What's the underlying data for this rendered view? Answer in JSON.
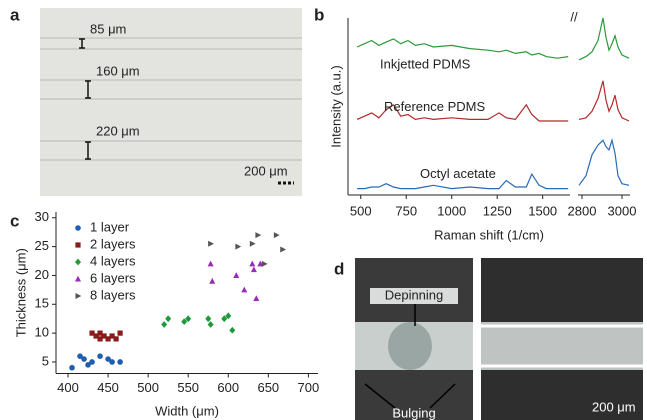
{
  "panels": {
    "a": {
      "label": "a",
      "notes": [
        "85 μm",
        "160 μm",
        "220 μm"
      ],
      "scale": "200 μm"
    },
    "b": {
      "label": "b"
    },
    "c": {
      "label": "c"
    },
    "d": {
      "label": "d",
      "notes": [
        "Depinning",
        "Bulging"
      ],
      "scale": "200 μm"
    }
  },
  "chart_data": [
    {
      "type": "line",
      "xlabel": "Raman shift (1/cm)",
      "ylabel": "Intensity (a.u.)",
      "xlim": [
        430,
        3040
      ],
      "xbreak": [
        1650,
        2780
      ],
      "ylim": [
        0,
        11
      ],
      "xticks": [
        500,
        750,
        1000,
        1250,
        1500,
        2800,
        3000
      ],
      "x": [
        480,
        520,
        560,
        600,
        640,
        680,
        720,
        760,
        800,
        850,
        900,
        1000,
        1100,
        1200,
        1260,
        1300,
        1350,
        1410,
        1440,
        1480,
        1520,
        1580,
        1640,
        2785,
        2820,
        2850,
        2880,
        2905,
        2920,
        2935,
        2950,
        2965,
        2980,
        3000,
        3035
      ],
      "series": [
        {
          "name": "Inkjetted PDMS",
          "color": "#2a9a3a",
          "values": [
            9.2,
            9.4,
            9.6,
            9.3,
            9.5,
            9.7,
            9.4,
            9.6,
            9.3,
            9.4,
            9.2,
            9.3,
            9.1,
            9.0,
            8.9,
            9.0,
            8.8,
            8.9,
            8.7,
            8.8,
            8.6,
            8.5,
            8.6,
            8.4,
            8.6,
            8.9,
            9.6,
            11.0,
            9.8,
            9.0,
            9.4,
            9.9,
            9.2,
            8.7,
            8.5
          ]
        },
        {
          "name": "Reference PDMS",
          "color": "#b22a2a",
          "values": [
            4.7,
            4.9,
            5.1,
            4.8,
            5.3,
            5.6,
            4.9,
            5.0,
            4.7,
            4.8,
            4.7,
            4.8,
            4.7,
            4.7,
            5.1,
            4.8,
            4.7,
            5.6,
            5.0,
            4.6,
            4.6,
            4.6,
            4.6,
            4.7,
            4.8,
            5.2,
            6.0,
            7.1,
            5.9,
            5.2,
            5.6,
            6.2,
            5.3,
            4.8,
            4.6
          ]
        },
        {
          "name": "Octyl acetate",
          "color": "#2a6ab8",
          "values": [
            0.4,
            0.4,
            0.5,
            0.5,
            0.7,
            0.5,
            0.4,
            0.4,
            0.4,
            0.5,
            0.6,
            0.4,
            0.5,
            0.4,
            0.4,
            0.9,
            0.5,
            0.5,
            1.3,
            0.6,
            0.4,
            0.4,
            0.4,
            0.6,
            1.2,
            2.5,
            3.1,
            3.4,
            3.0,
            2.8,
            3.4,
            2.6,
            1.2,
            0.7,
            0.6
          ]
        }
      ]
    },
    {
      "type": "scatter",
      "xlabel": "Width (μm)",
      "ylabel": "Thickness (μm)",
      "xlim": [
        385,
        712
      ],
      "ylim": [
        3,
        31
      ],
      "xticks": [
        400,
        450,
        500,
        550,
        600,
        650,
        700
      ],
      "yticks": [
        5,
        10,
        15,
        20,
        25,
        30
      ],
      "series": [
        {
          "name": "1 layer",
          "color": "#1f5fb0",
          "marker": "circle",
          "x": [
            405,
            415,
            420,
            425,
            440,
            450,
            455,
            465,
            430
          ],
          "values": [
            4,
            6,
            5.5,
            4.5,
            6,
            5.5,
            5,
            5,
            5
          ]
        },
        {
          "name": "2 layers",
          "color": "#8b1a1a",
          "marker": "square",
          "x": [
            430,
            435,
            440,
            445,
            450,
            455,
            460,
            465,
            440
          ],
          "values": [
            10,
            9.5,
            9,
            9.5,
            9,
            9.5,
            9,
            10,
            10
          ]
        },
        {
          "name": "4 layers",
          "color": "#1e9a3a",
          "marker": "diamond",
          "x": [
            520,
            525,
            545,
            550,
            575,
            578,
            595,
            600,
            605
          ],
          "values": [
            11.5,
            12.5,
            12,
            12.5,
            12.5,
            11.5,
            12.5,
            13,
            10.5
          ]
        },
        {
          "name": "6 layers",
          "color": "#9a2ab8",
          "marker": "triangle",
          "x": [
            578,
            580,
            610,
            620,
            630,
            632,
            635,
            640
          ],
          "values": [
            22,
            19,
            20,
            17.5,
            22,
            21,
            16,
            22
          ]
        },
        {
          "name": "8 layers",
          "color": "#555555",
          "marker": "triangle-right",
          "x": [
            578,
            612,
            630,
            637,
            645,
            660,
            668
          ],
          "values": [
            25.5,
            25,
            25.5,
            27,
            22,
            27,
            24.5
          ]
        }
      ]
    }
  ]
}
